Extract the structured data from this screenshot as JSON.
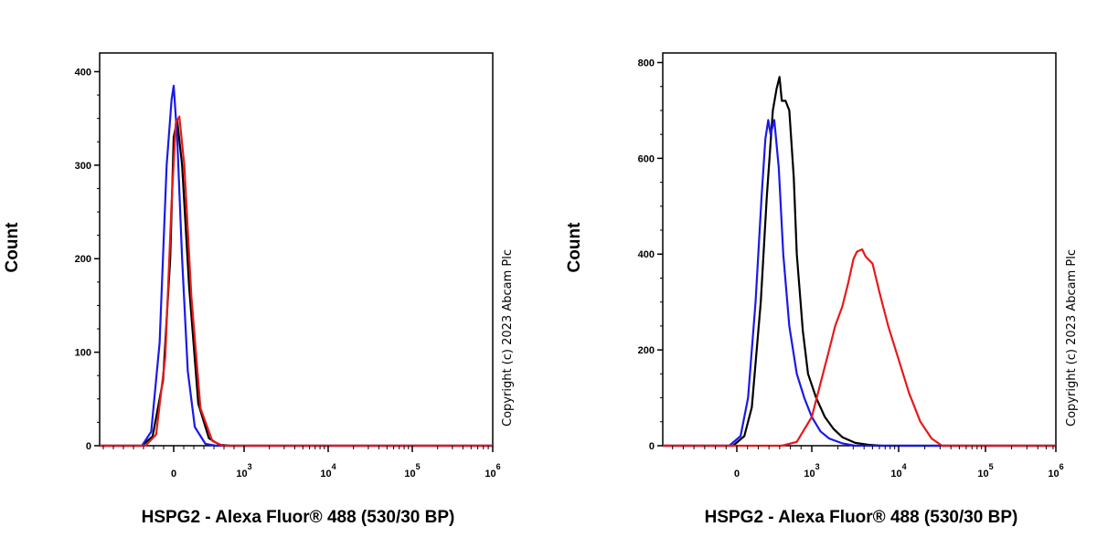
{
  "copyright": "Copyright (c) 2023 Abcam Plc",
  "chart_data": [
    {
      "type": "line",
      "xlabel": "HSPG2 - Alexa Fluor® 488 (530/30 BP)",
      "ylabel": "Count",
      "x_scale": "biexponential",
      "ylim": [
        0,
        420
      ],
      "yticks": [
        0,
        100,
        200,
        300,
        400
      ],
      "xtick_labels": [
        {
          "base": "0",
          "exp": ""
        },
        {
          "base": "10",
          "exp": "3"
        },
        {
          "base": "10",
          "exp": "4"
        },
        {
          "base": "10",
          "exp": "5"
        },
        {
          "base": "10",
          "exp": "6"
        }
      ],
      "grid": false,
      "series": [
        {
          "color": "#000000",
          "x": [
            -0.45,
            -0.3,
            -0.15,
            -0.05,
            0,
            0.05,
            0.12,
            0.22,
            0.35,
            0.5,
            0.65,
            0.8
          ],
          "values": [
            0,
            10,
            70,
            200,
            330,
            348,
            300,
            170,
            45,
            8,
            1,
            0
          ]
        },
        {
          "color": "#1a1ae6",
          "x": [
            -0.45,
            -0.32,
            -0.2,
            -0.1,
            -0.03,
            0,
            0.05,
            0.12,
            0.2,
            0.3,
            0.45,
            0.6
          ],
          "values": [
            0,
            15,
            110,
            300,
            370,
            385,
            330,
            200,
            80,
            20,
            2,
            0
          ]
        },
        {
          "color": "#e61a1a",
          "x": [
            -0.4,
            -0.25,
            -0.12,
            -0.03,
            0.03,
            0.08,
            0.15,
            0.25,
            0.38,
            0.55,
            0.7
          ],
          "values": [
            0,
            12,
            95,
            260,
            345,
            352,
            300,
            160,
            40,
            5,
            0
          ]
        }
      ]
    },
    {
      "type": "line",
      "xlabel": "HSPG2 - Alexa Fluor® 488 (530/30 BP)",
      "ylabel": "Count",
      "x_scale": "biexponential",
      "ylim": [
        0,
        820
      ],
      "yticks": [
        0,
        200,
        400,
        600,
        800
      ],
      "xtick_labels": [
        {
          "base": "0",
          "exp": ""
        },
        {
          "base": "10",
          "exp": "3"
        },
        {
          "base": "10",
          "exp": "4"
        },
        {
          "base": "10",
          "exp": "5"
        },
        {
          "base": "10",
          "exp": "6"
        }
      ],
      "grid": false,
      "series": [
        {
          "color": "#000000",
          "x": [
            -0.05,
            0.1,
            0.2,
            0.32,
            0.4,
            0.48,
            0.53,
            0.57,
            0.6,
            0.65,
            0.7,
            0.76,
            0.8,
            0.88,
            0.95,
            1.05,
            1.15,
            1.25,
            1.35,
            1.5,
            1.65,
            1.8
          ],
          "values": [
            0,
            20,
            80,
            300,
            520,
            700,
            745,
            770,
            720,
            720,
            700,
            560,
            400,
            240,
            150,
            100,
            60,
            35,
            18,
            6,
            2,
            0
          ]
        },
        {
          "color": "#1a1ae6",
          "x": [
            -0.1,
            0.05,
            0.15,
            0.25,
            0.33,
            0.38,
            0.42,
            0.45,
            0.5,
            0.56,
            0.62,
            0.7,
            0.8,
            0.9,
            1.0,
            1.1,
            1.2,
            1.35,
            1.5
          ],
          "values": [
            0,
            20,
            100,
            300,
            520,
            640,
            680,
            650,
            680,
            580,
            400,
            250,
            150,
            100,
            60,
            30,
            15,
            5,
            0
          ]
        },
        {
          "color": "#e61a1a",
          "x": [
            0.6,
            0.8,
            1.0,
            1.1,
            1.2,
            1.27,
            1.35,
            1.42,
            1.48,
            1.52,
            1.58,
            1.62,
            1.7,
            1.78,
            1.88,
            2.0,
            2.12,
            2.25,
            2.38,
            2.5
          ],
          "values": [
            0,
            8,
            60,
            130,
            200,
            250,
            290,
            340,
            390,
            405,
            410,
            395,
            380,
            320,
            250,
            180,
            110,
            50,
            15,
            0
          ]
        }
      ]
    }
  ]
}
